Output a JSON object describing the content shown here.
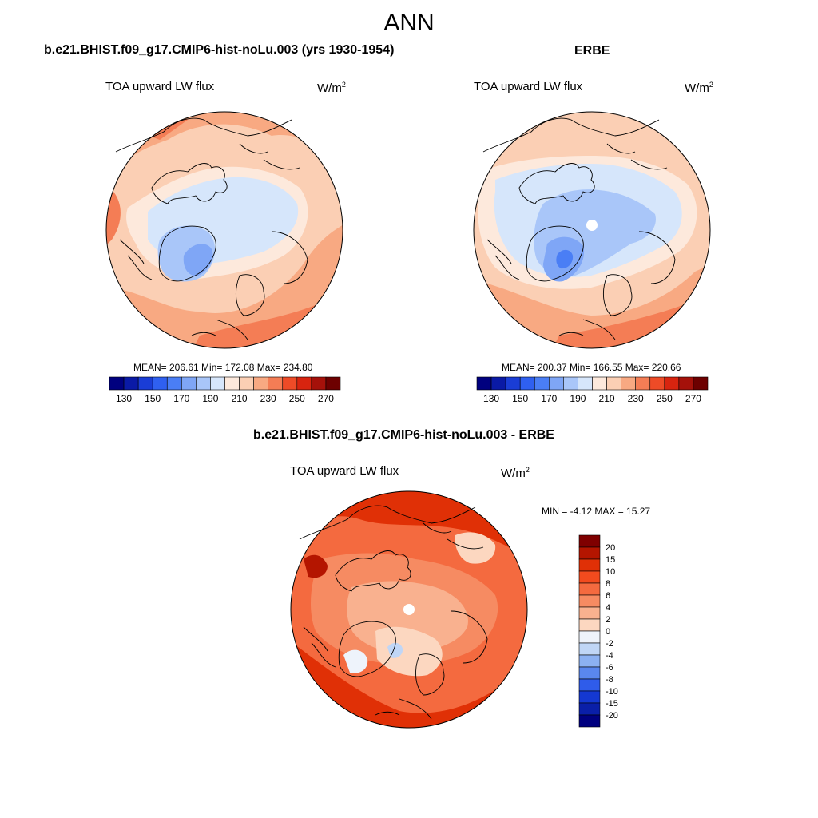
{
  "figure": {
    "title": "ANN"
  },
  "panels": [
    {
      "case": "b.e21.BHIST.f09_g17.CMIP6-hist-noLu.003 (yrs 1930-1954)",
      "variable": "TOA upward LW flux",
      "units_base": "W/m",
      "units_exp": "2",
      "stats": "MEAN= 206.61  Min= 172.08  Max= 234.80",
      "mean": 206.61,
      "min": 172.08,
      "max": 234.8
    },
    {
      "case": "ERBE",
      "variable": "TOA upward LW flux",
      "units_base": "W/m",
      "units_exp": "2",
      "stats": "MEAN= 200.37  Min= 166.55  Max= 220.66",
      "mean": 200.37,
      "min": 166.55,
      "max": 220.66
    },
    {
      "case": "b.e21.BHIST.f09_g17.CMIP6-hist-noLu.003 - ERBE",
      "variable": "TOA upward LW flux",
      "units_base": "W/m",
      "units_exp": "2",
      "stats": "MIN =  -4.12 MAX =  15.27",
      "min": -4.12,
      "max": 15.27
    }
  ],
  "colorbar_abs": {
    "levels": [
      130,
      140,
      150,
      160,
      170,
      180,
      190,
      200,
      210,
      220,
      230,
      240,
      250,
      260,
      270
    ],
    "labels": [
      "130",
      "150",
      "170",
      "190",
      "210",
      "230",
      "250",
      "270"
    ],
    "colors": [
      "#00007f",
      "#0a1aa6",
      "#1a3dd6",
      "#2f60f0",
      "#4a7ef5",
      "#7fa6f6",
      "#a9c6f9",
      "#d6e6fb",
      "#fde9dc",
      "#fbcfb4",
      "#f8a982",
      "#f47d55",
      "#ee4b27",
      "#d8240f",
      "#a5110a",
      "#6d0000"
    ]
  },
  "colorbar_diff": {
    "labels": [
      "20",
      "15",
      "10",
      "8",
      "6",
      "4",
      "2",
      "0",
      "-2",
      "-4",
      "-6",
      "-8",
      "-10",
      "-15",
      "-20"
    ],
    "colors": [
      "#7f0000",
      "#b41500",
      "#e03006",
      "#f24b1e",
      "#f46a3f",
      "#f68b62",
      "#f9b18f",
      "#fcd7c0",
      "#eef3fb",
      "#c0d6f6",
      "#8cb1f2",
      "#5a87ee",
      "#2f5cea",
      "#1438d2",
      "#0a1fa8",
      "#00007f"
    ]
  }
}
